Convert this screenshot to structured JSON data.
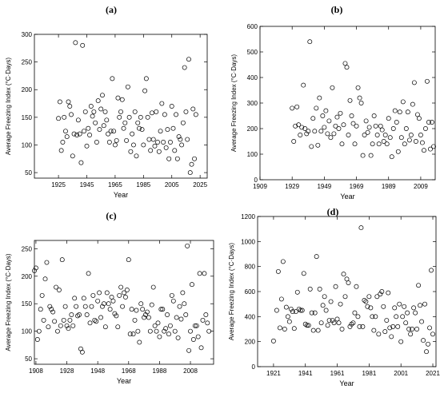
{
  "chart_data": [
    {
      "panel": "(a)",
      "type": "scatter",
      "xlabel": "Year",
      "ylabel": "Average Freezing Index (°C·Days)",
      "xlim": [
        1908,
        2030
      ],
      "ylim": [
        40,
        300
      ],
      "xticks": [
        1925,
        1945,
        1965,
        1985,
        2005,
        2025
      ],
      "yticks": [
        50,
        100,
        150,
        200,
        250,
        300
      ],
      "x": [
        1925,
        1926,
        1927,
        1928,
        1929,
        1930,
        1931,
        1932,
        1933,
        1934,
        1935,
        1936,
        1937,
        1938,
        1939,
        1940,
        1941,
        1942,
        1943,
        1944,
        1945,
        1946,
        1947,
        1948,
        1949,
        1950,
        1951,
        1952,
        1953,
        1954,
        1955,
        1956,
        1957,
        1958,
        1959,
        1960,
        1961,
        1962,
        1963,
        1964,
        1965,
        1966,
        1967,
        1968,
        1969,
        1970,
        1971,
        1972,
        1973,
        1974,
        1975,
        1976,
        1977,
        1978,
        1979,
        1980,
        1981,
        1982,
        1983,
        1984,
        1985,
        1986,
        1987,
        1988,
        1989,
        1990,
        1991,
        1992,
        1993,
        1994,
        1995,
        1996,
        1997,
        1998,
        1999,
        2000,
        2001,
        2002,
        2003,
        2004,
        2005,
        2006,
        2007,
        2008,
        2009,
        2010,
        2011,
        2012,
        2013,
        2014,
        2015,
        2016,
        2017,
        2018,
        2019,
        2020,
        2021,
        2022
      ],
      "y": [
        148,
        178,
        90,
        105,
        150,
        125,
        115,
        178,
        170,
        155,
        80,
        120,
        285,
        118,
        145,
        120,
        68,
        280,
        125,
        160,
        98,
        130,
        118,
        170,
        152,
        160,
        140,
        105,
        180,
        128,
        165,
        190,
        135,
        160,
        145,
        120,
        105,
        125,
        220,
        125,
        100,
        108,
        185,
        150,
        160,
        182,
        130,
        140,
        108,
        205,
        150,
        88,
        120,
        100,
        160,
        80,
        140,
        130,
        150,
        128,
        100,
        198,
        220,
        150,
        110,
        90,
        158,
        110,
        98,
        160,
        105,
        88,
        125,
        175,
        105,
        155,
        95,
        128,
        75,
        105,
        170,
        130,
        90,
        155,
        75,
        115,
        110,
        100,
        140,
        240,
        160,
        110,
        255,
        50,
        65,
        165,
        75,
        155
      ]
    },
    {
      "panel": "(b)",
      "type": "scatter",
      "xlabel": "Year",
      "ylabel": "Average Freezing Index (°C·Days)",
      "xlim": [
        1909,
        2018
      ],
      "ylim": [
        0,
        600
      ],
      "xticks": [
        1909,
        1929,
        1949,
        1969,
        1989,
        2009
      ],
      "yticks": [
        0,
        100,
        200,
        300,
        400,
        500,
        600
      ],
      "x": [
        1929,
        1930,
        1931,
        1932,
        1933,
        1934,
        1935,
        1936,
        1937,
        1938,
        1939,
        1940,
        1941,
        1942,
        1943,
        1944,
        1945,
        1946,
        1947,
        1948,
        1949,
        1950,
        1951,
        1952,
        1953,
        1954,
        1955,
        1956,
        1957,
        1958,
        1959,
        1960,
        1961,
        1962,
        1963,
        1964,
        1965,
        1966,
        1967,
        1968,
        1969,
        1970,
        1971,
        1972,
        1973,
        1974,
        1975,
        1976,
        1977,
        1978,
        1979,
        1980,
        1981,
        1982,
        1983,
        1984,
        1985,
        1986,
        1987,
        1988,
        1989,
        1990,
        1991,
        1992,
        1993,
        1994,
        1995,
        1996,
        1997,
        1998,
        1999,
        2000,
        2001,
        2002,
        2003,
        2004,
        2005,
        2006,
        2007,
        2008,
        2009,
        2010,
        2011,
        2012,
        2013,
        2014,
        2015,
        2016,
        2017
      ],
      "y": [
        280,
        150,
        210,
        285,
        215,
        175,
        205,
        370,
        200,
        180,
        190,
        540,
        130,
        240,
        190,
        280,
        135,
        320,
        190,
        250,
        205,
        270,
        180,
        230,
        165,
        360,
        180,
        210,
        245,
        200,
        260,
        140,
        215,
        455,
        440,
        175,
        310,
        250,
        220,
        140,
        210,
        360,
        320,
        300,
        95,
        175,
        230,
        185,
        205,
        95,
        140,
        250,
        210,
        175,
        140,
        210,
        195,
        150,
        175,
        140,
        240,
        165,
        90,
        200,
        270,
        225,
        110,
        265,
        165,
        305,
        140,
        200,
        265,
        155,
        175,
        295,
        380,
        150,
        255,
        240,
        175,
        145,
        115,
        200,
        385,
        225,
        120,
        225,
        130
      ]
    },
    {
      "panel": "(c)",
      "type": "scatter",
      "xlabel": "Year",
      "ylabel": "Average Freezing Index (°C·Days)",
      "xlim": [
        1907,
        2023
      ],
      "ylim": [
        40,
        265
      ],
      "xticks": [
        1908,
        1928,
        1948,
        1968,
        1988,
        2008
      ],
      "yticks": [
        50,
        100,
        150,
        200,
        250
      ],
      "x": [
        1907,
        1908,
        1909,
        1910,
        1911,
        1912,
        1913,
        1914,
        1915,
        1916,
        1917,
        1918,
        1919,
        1920,
        1921,
        1922,
        1923,
        1924,
        1925,
        1926,
        1927,
        1928,
        1929,
        1930,
        1931,
        1932,
        1933,
        1934,
        1935,
        1936,
        1937,
        1938,
        1939,
        1940,
        1941,
        1942,
        1943,
        1944,
        1945,
        1946,
        1947,
        1948,
        1949,
        1950,
        1951,
        1952,
        1953,
        1954,
        1955,
        1956,
        1957,
        1958,
        1959,
        1960,
        1961,
        1962,
        1963,
        1964,
        1965,
        1966,
        1967,
        1968,
        1969,
        1970,
        1971,
        1972,
        1973,
        1974,
        1975,
        1976,
        1977,
        1978,
        1979,
        1980,
        1981,
        1982,
        1983,
        1984,
        1985,
        1986,
        1987,
        1988,
        1989,
        1990,
        1991,
        1992,
        1993,
        1994,
        1995,
        1996,
        1997,
        1998,
        1999,
        2000,
        2001,
        2002,
        2003,
        2004,
        2005,
        2006,
        2007,
        2008,
        2009,
        2010,
        2011,
        2012,
        2013,
        2014,
        2015,
        2016,
        2017,
        2018,
        2019,
        2020
      ],
      "y": [
        210,
        215,
        85,
        100,
        140,
        165,
        120,
        195,
        225,
        108,
        145,
        140,
        135,
        118,
        180,
        100,
        175,
        110,
        230,
        120,
        145,
        110,
        105,
        120,
        130,
        110,
        160,
        145,
        128,
        130,
        68,
        62,
        160,
        145,
        130,
        205,
        115,
        145,
        165,
        120,
        118,
        155,
        170,
        125,
        145,
        150,
        108,
        170,
        150,
        140,
        162,
        155,
        132,
        128,
        108,
        165,
        180,
        145,
        170,
        162,
        175,
        230,
        95,
        140,
        95,
        120,
        138,
        100,
        80,
        150,
        140,
        125,
        130,
        135,
        125,
        100,
        148,
        180,
        110,
        100,
        115,
        90,
        140,
        140,
        100,
        105,
        130,
        95,
        110,
        165,
        155,
        100,
        125,
        88,
        145,
        122,
        170,
        150,
        130,
        255,
        65,
        100,
        185,
        85,
        110,
        110,
        90,
        205,
        70,
        120,
        205,
        130,
        115,
        100
      ]
    },
    {
      "panel": "(d)",
      "type": "scatter",
      "xlabel": "Year",
      "ylabel": "Average Freezing Index (°C·Days)",
      "xlim": [
        1911,
        2023
      ],
      "ylim": [
        0,
        1200
      ],
      "xticks": [
        1921,
        1941,
        1961,
        1981,
        2001,
        2021
      ],
      "yticks": [
        0,
        200,
        400,
        600,
        800,
        1000,
        1200
      ],
      "x": [
        1921,
        1923,
        1924,
        1925,
        1926,
        1927,
        1928,
        1929,
        1930,
        1931,
        1932,
        1933,
        1934,
        1935,
        1936,
        1937,
        1938,
        1939,
        1940,
        1941,
        1942,
        1943,
        1944,
        1945,
        1946,
        1947,
        1948,
        1949,
        1950,
        1951,
        1952,
        1953,
        1954,
        1955,
        1956,
        1957,
        1958,
        1959,
        1960,
        1961,
        1962,
        1963,
        1964,
        1965,
        1966,
        1967,
        1968,
        1969,
        1970,
        1971,
        1972,
        1973,
        1974,
        1975,
        1976,
        1977,
        1978,
        1979,
        1980,
        1981,
        1982,
        1983,
        1984,
        1985,
        1986,
        1987,
        1988,
        1989,
        1990,
        1991,
        1992,
        1993,
        1994,
        1995,
        1996,
        1997,
        1998,
        1999,
        2000,
        2001,
        2002,
        2003,
        2004,
        2005,
        2006,
        2007,
        2008,
        2009,
        2010,
        2011,
        2012,
        2013,
        2014,
        2015,
        2016,
        2017,
        2018,
        2019,
        2020,
        2021
      ],
      "y": [
        205,
        450,
        760,
        310,
        540,
        840,
        300,
        475,
        400,
        360,
        460,
        440,
        305,
        440,
        595,
        460,
        450,
        450,
        745,
        340,
        330,
        330,
        620,
        430,
        290,
        430,
        880,
        290,
        620,
        350,
        490,
        560,
        450,
        330,
        370,
        520,
        370,
        350,
        640,
        380,
        350,
        500,
        300,
        740,
        560,
        700,
        670,
        320,
        340,
        350,
        430,
        640,
        400,
        320,
        1110,
        320,
        530,
        520,
        480,
        560,
        470,
        400,
        290,
        400,
        560,
        260,
        580,
        600,
        480,
        280,
        370,
        590,
        310,
        240,
        320,
        470,
        400,
        320,
        500,
        200,
        400,
        480,
        350,
        430,
        300,
        260,
        300,
        470,
        430,
        300,
        650,
        490,
        360,
        210,
        500,
        120,
        180,
        310,
        770,
        260
      ]
    }
  ]
}
